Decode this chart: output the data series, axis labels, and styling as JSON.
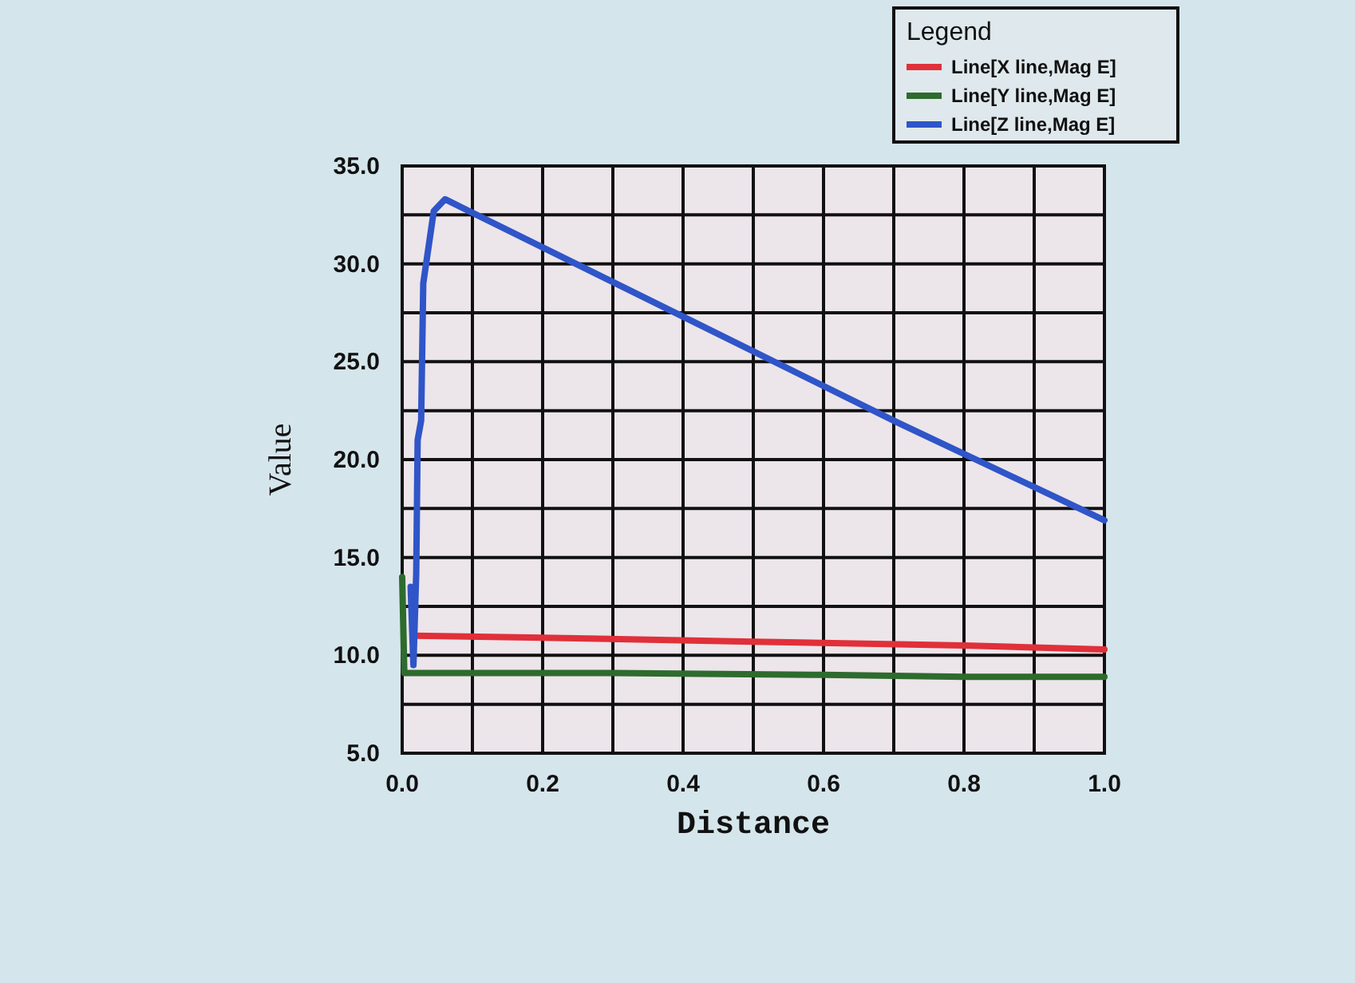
{
  "chart_data": {
    "type": "line",
    "xlabel": "Distance",
    "ylabel": "Value",
    "legend_title": "Legend",
    "legend": "top right",
    "grid": true,
    "line_style": "solid",
    "xlim": [
      0,
      1
    ],
    "ylim": [
      5,
      35
    ],
    "xticks": [
      {
        "value": 0,
        "label": "0.0"
      },
      {
        "value": 0.1,
        "label": null
      },
      {
        "value": 0.2,
        "label": "0.2"
      },
      {
        "value": 0.3,
        "label": null
      },
      {
        "value": 0.4,
        "label": "0.4"
      },
      {
        "value": 0.5,
        "label": null
      },
      {
        "value": 0.6,
        "label": "0.6"
      },
      {
        "value": 0.7,
        "label": null
      },
      {
        "value": 0.8,
        "label": "0.8"
      },
      {
        "value": 0.9,
        "label": null
      },
      {
        "value": 1,
        "label": "1.0"
      }
    ],
    "yticks": [
      {
        "value": 5,
        "label": "5.0"
      },
      {
        "value": 7.5,
        "label": null
      },
      {
        "value": 10,
        "label": "10.0"
      },
      {
        "value": 12.5,
        "label": null
      },
      {
        "value": 15,
        "label": "15.0"
      },
      {
        "value": 17.5,
        "label": null
      },
      {
        "value": 20,
        "label": "20.0"
      },
      {
        "value": 22.5,
        "label": null
      },
      {
        "value": 25,
        "label": "25.0"
      },
      {
        "value": 27.5,
        "label": null
      },
      {
        "value": 30,
        "label": "30.0"
      },
      {
        "value": 32.5,
        "label": null
      },
      {
        "value": 35,
        "label": "35.0"
      }
    ],
    "series": [
      {
        "name": "Line[X line,Mag E]",
        "color": "#e0303a",
        "x": [
          0.018,
          0.2,
          0.5,
          0.8,
          1
        ],
        "values": [
          11.0,
          10.9,
          10.7,
          10.5,
          10.3
        ]
      },
      {
        "name": "Line[Y line,Mag E]",
        "color": "#2e6b2e",
        "x": [
          0,
          0.003,
          0.3,
          0.6,
          0.8,
          1
        ],
        "values": [
          14.0,
          9.1,
          9.1,
          9.0,
          8.9,
          8.9
        ]
      },
      {
        "name": "Line[Z line,Mag E]",
        "color": "#2f55c8",
        "x": [
          0.012,
          0.016,
          0.02,
          0.022,
          0.027,
          0.03,
          0.045,
          0.061,
          0.4,
          0.705,
          1
        ],
        "values": [
          13.5,
          9.5,
          14.2,
          21.0,
          22.0,
          29.0,
          32.7,
          33.3,
          27.3,
          21.9,
          16.9
        ]
      }
    ]
  }
}
